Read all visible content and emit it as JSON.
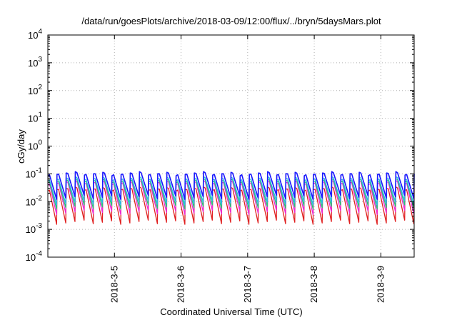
{
  "chart_data": {
    "type": "line",
    "title": "/data/run/goesPlots/archive/2018-03-09/12:00/flux/../bryn/5daysMars.plot",
    "xlabel": "Coordinated Universal Time (UTC)",
    "ylabel": "cGy/day",
    "yscale": "log",
    "ylim_exponents": [
      -4,
      4
    ],
    "y_ticks": [
      {
        "base": "10",
        "exp": "4",
        "value": 4
      },
      {
        "base": "10",
        "exp": "3",
        "value": 3
      },
      {
        "base": "10",
        "exp": "2",
        "value": 2
      },
      {
        "base": "10",
        "exp": "1",
        "value": 1
      },
      {
        "base": "10",
        "exp": "0",
        "value": 0
      },
      {
        "base": "10",
        "exp": "-1",
        "value": -1
      },
      {
        "base": "10",
        "exp": "-2",
        "value": -2
      },
      {
        "base": "10",
        "exp": "-3",
        "value": -3
      },
      {
        "base": "10",
        "exp": "-4",
        "value": -4
      }
    ],
    "x_range_days": [
      0,
      5.5
    ],
    "x_ticks": [
      {
        "label": "2018-3-5",
        "day": 1
      },
      {
        "label": "2018-3-6",
        "day": 2
      },
      {
        "label": "2018-3-7",
        "day": 3
      },
      {
        "label": "2018-3-8",
        "day": 4
      },
      {
        "label": "2018-3-9",
        "day": 5
      }
    ],
    "grid": true,
    "sawtooth": {
      "period_days": 0.1375,
      "series_peak_exponents": [
        -1.0,
        -1.18,
        -1.25,
        -1.32,
        -1.55
      ],
      "series_trough_exponents": [
        -1.85,
        -2.05,
        -2.2,
        -2.4,
        -2.75
      ]
    },
    "series": [
      {
        "color": "#1a1aff"
      },
      {
        "color": "#6a35c9"
      },
      {
        "color": "#29b6e6"
      },
      {
        "color": "#2bbf7a"
      },
      {
        "color": "#ee2ad6"
      },
      {
        "color": "#e02020"
      }
    ]
  }
}
